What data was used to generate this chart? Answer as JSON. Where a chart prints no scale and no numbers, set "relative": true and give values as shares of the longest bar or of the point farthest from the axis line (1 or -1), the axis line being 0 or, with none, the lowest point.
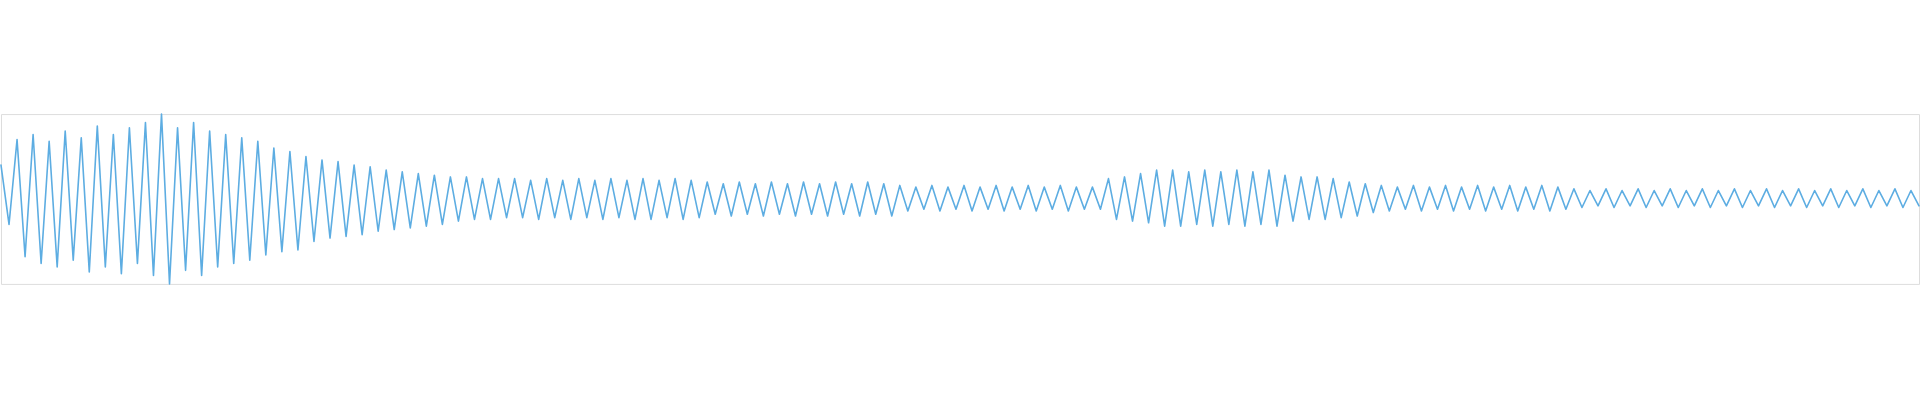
{
  "chart_data": {
    "type": "line",
    "relative": true,
    "tick_labels": false,
    "categories": [
      null,
      null,
      null,
      null,
      null,
      null,
      null,
      null,
      null,
      null,
      null,
      null,
      null,
      null,
      null,
      null,
      null,
      null,
      null,
      null,
      null,
      null,
      null,
      null,
      null,
      null,
      null,
      null,
      null,
      null,
      null,
      null,
      null,
      null,
      null,
      null,
      null,
      null,
      null,
      null,
      null,
      null,
      null,
      null,
      null,
      null,
      null,
      null,
      null,
      null,
      null,
      null,
      null,
      null,
      null,
      null,
      null,
      null,
      null,
      null,
      null,
      null,
      null,
      null,
      null,
      null,
      null,
      null,
      null,
      null,
      null,
      null,
      null,
      null,
      null,
      null,
      null,
      null,
      null,
      null,
      null,
      null,
      null,
      null,
      null,
      null,
      null,
      null,
      null,
      null,
      null,
      null,
      null,
      null,
      null,
      null,
      null,
      null,
      null,
      null,
      null,
      null,
      null,
      null,
      null,
      null,
      null,
      null,
      null,
      null,
      null,
      null,
      null,
      null,
      null,
      null,
      null,
      null,
      null,
      null,
      null,
      null,
      null,
      null,
      null,
      null,
      null,
      null,
      null,
      null,
      null,
      null,
      null,
      null,
      null,
      null,
      null,
      null,
      null,
      null,
      null,
      null,
      null,
      null,
      null,
      null,
      null,
      null,
      null,
      null,
      null,
      null,
      null,
      null,
      null,
      null,
      null,
      null,
      null,
      null,
      null,
      null,
      null,
      null,
      null,
      null,
      null,
      null,
      null,
      null,
      null,
      null,
      null,
      null,
      null,
      null,
      null,
      null,
      null,
      null,
      null,
      null,
      null,
      null,
      null,
      null,
      null,
      null,
      null,
      null,
      null,
      null,
      null,
      null,
      null,
      null,
      null,
      null,
      null,
      null,
      null,
      null,
      null,
      null,
      null,
      null,
      null,
      null,
      null,
      null,
      null,
      null,
      null,
      null,
      null,
      null,
      null,
      null,
      null,
      null,
      null,
      null,
      null,
      null,
      null,
      null,
      null,
      null,
      null,
      null,
      null,
      null,
      null,
      null,
      null,
      null,
      null,
      null,
      null,
      null
    ],
    "series": [
      {
        "color": "#5dade2",
        "values": [
          0.7,
          0.35,
          0.85,
          0.16,
          0.88,
          0.12,
          0.84,
          0.1,
          0.9,
          0.14,
          0.86,
          0.07,
          0.93,
          0.1,
          0.88,
          0.06,
          0.92,
          0.12,
          0.95,
          0.05,
          1.0,
          0.0,
          0.92,
          0.08,
          0.95,
          0.05,
          0.9,
          0.1,
          0.88,
          0.12,
          0.86,
          0.14,
          0.84,
          0.17,
          0.8,
          0.19,
          0.78,
          0.2,
          0.75,
          0.25,
          0.73,
          0.27,
          0.72,
          0.28,
          0.7,
          0.29,
          0.69,
          0.31,
          0.67,
          0.32,
          0.66,
          0.33,
          0.65,
          0.34,
          0.64,
          0.35,
          0.63,
          0.37,
          0.63,
          0.38,
          0.62,
          0.38,
          0.62,
          0.39,
          0.62,
          0.39,
          0.61,
          0.38,
          0.62,
          0.39,
          0.61,
          0.38,
          0.62,
          0.39,
          0.61,
          0.38,
          0.62,
          0.39,
          0.61,
          0.38,
          0.62,
          0.38,
          0.61,
          0.39,
          0.62,
          0.38,
          0.61,
          0.39,
          0.6,
          0.41,
          0.59,
          0.4,
          0.6,
          0.41,
          0.59,
          0.4,
          0.6,
          0.41,
          0.59,
          0.4,
          0.6,
          0.41,
          0.59,
          0.4,
          0.6,
          0.41,
          0.59,
          0.4,
          0.6,
          0.41,
          0.59,
          0.4,
          0.58,
          0.43,
          0.57,
          0.44,
          0.58,
          0.43,
          0.57,
          0.44,
          0.58,
          0.43,
          0.57,
          0.44,
          0.58,
          0.43,
          0.57,
          0.44,
          0.58,
          0.43,
          0.57,
          0.44,
          0.58,
          0.43,
          0.57,
          0.44,
          0.57,
          0.44,
          0.62,
          0.38,
          0.63,
          0.37,
          0.65,
          0.36,
          0.67,
          0.34,
          0.67,
          0.34,
          0.66,
          0.35,
          0.67,
          0.34,
          0.66,
          0.35,
          0.67,
          0.34,
          0.66,
          0.35,
          0.67,
          0.34,
          0.64,
          0.37,
          0.63,
          0.38,
          0.63,
          0.38,
          0.62,
          0.39,
          0.6,
          0.4,
          0.59,
          0.42,
          0.58,
          0.43,
          0.57,
          0.44,
          0.58,
          0.43,
          0.57,
          0.44,
          0.58,
          0.43,
          0.57,
          0.44,
          0.58,
          0.43,
          0.57,
          0.44,
          0.58,
          0.43,
          0.57,
          0.44,
          0.58,
          0.43,
          0.57,
          0.44,
          0.56,
          0.45,
          0.55,
          0.46,
          0.56,
          0.45,
          0.55,
          0.46,
          0.56,
          0.45,
          0.55,
          0.46,
          0.56,
          0.45,
          0.55,
          0.46,
          0.56,
          0.45,
          0.55,
          0.46,
          0.56,
          0.45,
          0.55,
          0.46,
          0.56,
          0.45,
          0.55,
          0.46,
          0.56,
          0.45,
          0.55,
          0.46,
          0.56,
          0.45,
          0.55,
          0.46,
          0.56,
          0.45,
          0.55,
          0.46,
          0.56,
          0.45,
          0.55,
          0.46
        ]
      }
    ]
  }
}
